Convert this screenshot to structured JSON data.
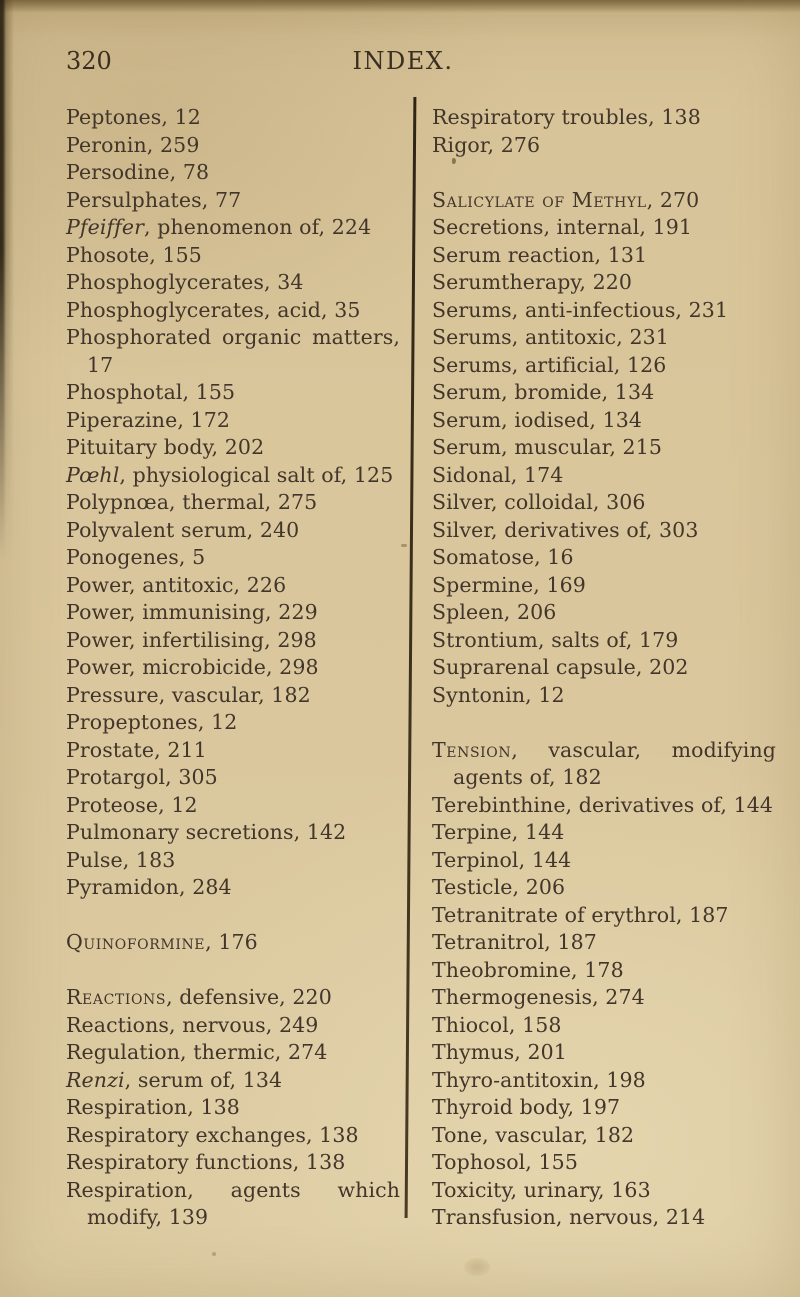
{
  "page": {
    "number": "320",
    "title": "INDEX."
  },
  "theme": {
    "paper": "#d8c499",
    "ink": "#42352a",
    "rule": "#3a2e1c"
  },
  "columns": {
    "left": {
      "lines": [
        {
          "seg": [
            {
              "t": "Peptones, 12"
            }
          ]
        },
        {
          "seg": [
            {
              "t": "Peronin, 259"
            }
          ]
        },
        {
          "seg": [
            {
              "t": "Persodine, 78"
            }
          ]
        },
        {
          "seg": [
            {
              "t": "Persulphates, 77"
            }
          ]
        },
        {
          "seg": [
            {
              "t": "Pfeiffer",
              "s": "i"
            },
            {
              "t": ", phenomenon of, 224"
            }
          ]
        },
        {
          "seg": [
            {
              "t": "Phosote, 155"
            }
          ]
        },
        {
          "seg": [
            {
              "t": "Phosphoglycerates, 34"
            }
          ]
        },
        {
          "seg": [
            {
              "t": "Phosphoglycerates, acid, 35"
            }
          ]
        },
        {
          "justify": true,
          "seg": [
            {
              "t": "Phosphorated organic matters,"
            }
          ]
        },
        {
          "indent": true,
          "seg": [
            {
              "t": "17"
            }
          ]
        },
        {
          "seg": [
            {
              "t": "Phosphotal, 155"
            }
          ]
        },
        {
          "seg": [
            {
              "t": "Piperazine, 172"
            }
          ]
        },
        {
          "seg": [
            {
              "t": "Pituitary body, 202"
            }
          ]
        },
        {
          "seg": [
            {
              "t": "Pœhl",
              "s": "i"
            },
            {
              "t": ", physiological salt of, 125"
            }
          ]
        },
        {
          "seg": [
            {
              "t": "Polypnœa, thermal, 275"
            }
          ]
        },
        {
          "seg": [
            {
              "t": "Polyvalent serum, 240"
            }
          ]
        },
        {
          "seg": [
            {
              "t": "Ponogenes, 5"
            }
          ]
        },
        {
          "seg": [
            {
              "t": "Power, antitoxic, 226"
            }
          ]
        },
        {
          "seg": [
            {
              "t": "Power, immunising, 229"
            }
          ]
        },
        {
          "seg": [
            {
              "t": "Power, infertilising, 298"
            }
          ]
        },
        {
          "seg": [
            {
              "t": "Power, microbicide, 298"
            }
          ]
        },
        {
          "seg": [
            {
              "t": "Pressure, vascular, 182"
            }
          ]
        },
        {
          "seg": [
            {
              "t": "Propeptones, 12"
            }
          ]
        },
        {
          "seg": [
            {
              "t": "Prostate, 211"
            }
          ]
        },
        {
          "seg": [
            {
              "t": "Protargol, 305"
            }
          ]
        },
        {
          "seg": [
            {
              "t": "Proteose, 12"
            }
          ]
        },
        {
          "seg": [
            {
              "t": "Pulmonary secretions, 142"
            }
          ]
        },
        {
          "seg": [
            {
              "t": "Pulse, 183"
            }
          ]
        },
        {
          "seg": [
            {
              "t": "Pyramidon, 284"
            }
          ]
        },
        {
          "blank": true
        },
        {
          "seg": [
            {
              "t": "Quinoformine",
              "s": "sc"
            },
            {
              "t": ", 176"
            }
          ]
        },
        {
          "blank": true
        },
        {
          "seg": [
            {
              "t": "Reactions",
              "s": "sc"
            },
            {
              "t": ", defensive, 220"
            }
          ]
        },
        {
          "seg": [
            {
              "t": "Reactions, nervous, 249"
            }
          ]
        },
        {
          "seg": [
            {
              "t": "Regulation, thermic, 274"
            }
          ]
        },
        {
          "seg": [
            {
              "t": "Renzi",
              "s": "i"
            },
            {
              "t": ", serum of, 134"
            }
          ]
        },
        {
          "seg": [
            {
              "t": "Respiration, 138"
            }
          ]
        },
        {
          "seg": [
            {
              "t": "Respiratory exchanges, 138"
            }
          ]
        },
        {
          "seg": [
            {
              "t": "Respiratory functions, 138"
            }
          ]
        },
        {
          "justify": true,
          "seg": [
            {
              "t": "Respiration, agents which"
            }
          ]
        },
        {
          "indent": true,
          "seg": [
            {
              "t": "modify, 139"
            }
          ]
        }
      ]
    },
    "right": {
      "lines": [
        {
          "seg": [
            {
              "t": "Respiratory troubles, 138"
            }
          ]
        },
        {
          "seg": [
            {
              "t": "Rigor, 276"
            }
          ]
        },
        {
          "blank": true
        },
        {
          "seg": [
            {
              "t": "Salicylate of Methyl",
              "s": "sc"
            },
            {
              "t": ", 270"
            }
          ]
        },
        {
          "seg": [
            {
              "t": "Secretions, internal, 191"
            }
          ]
        },
        {
          "seg": [
            {
              "t": "Serum reaction, 131"
            }
          ]
        },
        {
          "seg": [
            {
              "t": "Serumtherapy, 220"
            }
          ]
        },
        {
          "seg": [
            {
              "t": "Serums, anti-infectious, 231"
            }
          ]
        },
        {
          "seg": [
            {
              "t": "Serums, antitoxic, 231"
            }
          ]
        },
        {
          "seg": [
            {
              "t": "Serums, artificial, 126"
            }
          ]
        },
        {
          "seg": [
            {
              "t": "Serum, bromide, 134"
            }
          ]
        },
        {
          "seg": [
            {
              "t": "Serum, iodised, 134"
            }
          ]
        },
        {
          "seg": [
            {
              "t": "Serum, muscular, 215"
            }
          ]
        },
        {
          "seg": [
            {
              "t": "Sidonal, 174"
            }
          ]
        },
        {
          "seg": [
            {
              "t": "Silver, colloidal, 306"
            }
          ]
        },
        {
          "seg": [
            {
              "t": "Silver, derivatives of, 303"
            }
          ]
        },
        {
          "seg": [
            {
              "t": "Somatose, 16"
            }
          ]
        },
        {
          "seg": [
            {
              "t": "Spermine, 169"
            }
          ]
        },
        {
          "seg": [
            {
              "t": "Spleen, 206"
            }
          ]
        },
        {
          "seg": [
            {
              "t": "Strontium, salts of, 179"
            }
          ]
        },
        {
          "seg": [
            {
              "t": "Suprarenal capsule, 202"
            }
          ]
        },
        {
          "seg": [
            {
              "t": "Syntonin, 12"
            }
          ]
        },
        {
          "blank": true
        },
        {
          "justify": true,
          "seg": [
            {
              "t": "Tension",
              "s": "sc"
            },
            {
              "t": ", vascular, modifying"
            }
          ]
        },
        {
          "indent": true,
          "seg": [
            {
              "t": "agents of, 182"
            }
          ]
        },
        {
          "seg": [
            {
              "t": "Terebinthine, derivatives of, 144"
            }
          ]
        },
        {
          "seg": [
            {
              "t": "Terpine, 144"
            }
          ]
        },
        {
          "seg": [
            {
              "t": "Terpinol, 144"
            }
          ]
        },
        {
          "seg": [
            {
              "t": "Testicle, 206"
            }
          ]
        },
        {
          "seg": [
            {
              "t": "Tetranitrate of erythrol, 187"
            }
          ]
        },
        {
          "seg": [
            {
              "t": "Tetranitrol, 187"
            }
          ]
        },
        {
          "seg": [
            {
              "t": "Theobromine, 178"
            }
          ]
        },
        {
          "seg": [
            {
              "t": "Thermogenesis, 274"
            }
          ]
        },
        {
          "seg": [
            {
              "t": "Thiocol, 158"
            }
          ]
        },
        {
          "seg": [
            {
              "t": "Thymus, 201"
            }
          ]
        },
        {
          "seg": [
            {
              "t": "Thyro-antitoxin, 198"
            }
          ]
        },
        {
          "seg": [
            {
              "t": "Thyroid body, 197"
            }
          ]
        },
        {
          "seg": [
            {
              "t": "Tone, vascular, 182"
            }
          ]
        },
        {
          "seg": [
            {
              "t": "Tophosol, 155"
            }
          ]
        },
        {
          "seg": [
            {
              "t": "Toxicity, urinary, 163"
            }
          ]
        },
        {
          "seg": [
            {
              "t": "Transfusion, nervous, 214"
            }
          ]
        }
      ]
    }
  }
}
